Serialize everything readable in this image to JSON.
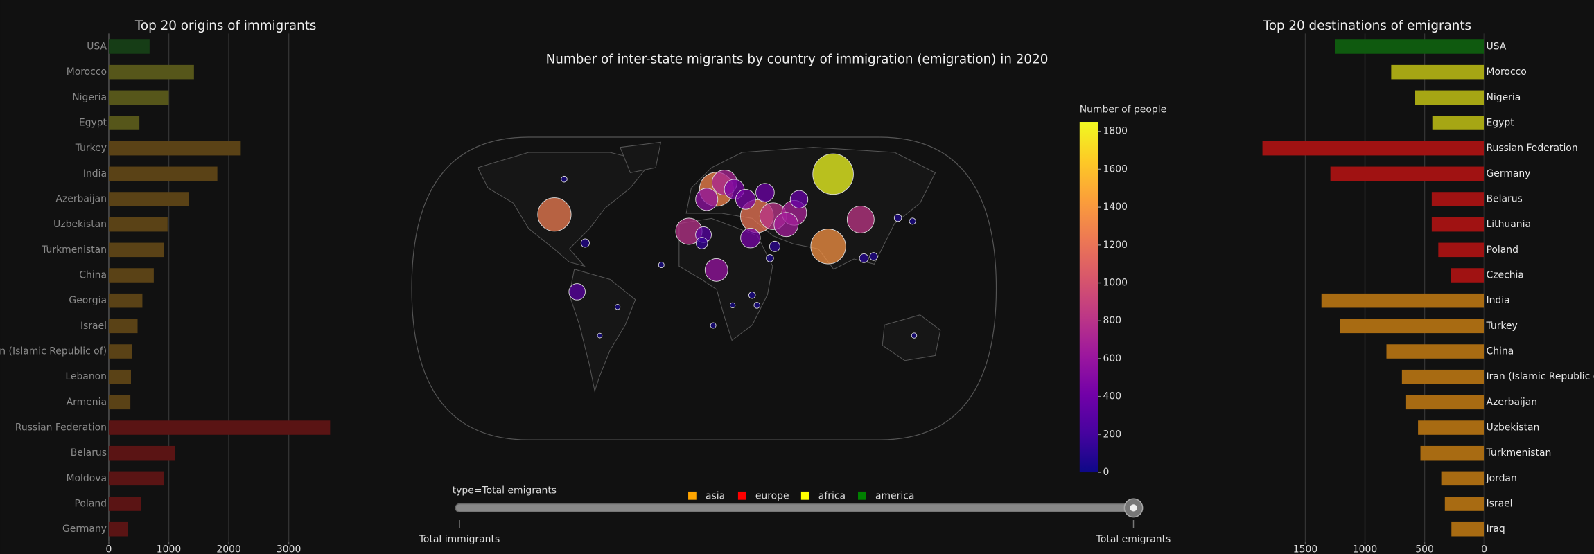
{
  "chart_data": [
    {
      "type": "hbar",
      "title": "Top 20 origins of immigrants",
      "categories": [
        "USA",
        "Morocco",
        "Nigeria",
        "Egypt",
        "Turkey",
        "India",
        "Azerbaijan",
        "Uzbekistan",
        "Turkmenistan",
        "China",
        "Georgia",
        "Israel",
        "Iran (Islamic Republic of)",
        "Lebanon",
        "Armenia",
        "Russian Federation",
        "Belarus",
        "Moldova",
        "Poland",
        "Germany"
      ],
      "values": [
        680,
        1420,
        1000,
        510,
        2200,
        1810,
        1340,
        980,
        920,
        750,
        560,
        480,
        390,
        370,
        360,
        3690,
        1100,
        920,
        540,
        320
      ],
      "colors": [
        "#163d16",
        "#56561a",
        "#56561a",
        "#56561a",
        "#5a4216",
        "#5a4216",
        "#5a4216",
        "#5a4216",
        "#5a4216",
        "#5a4216",
        "#5a4216",
        "#5a4216",
        "#5a4216",
        "#5a4216",
        "#5a4216",
        "#5a1414",
        "#5a1414",
        "#5a1414",
        "#5a1414",
        "#5a1414"
      ],
      "xlim": [
        0,
        3720
      ],
      "xticks": [
        0,
        1000,
        2000,
        3000
      ],
      "grid": true
    },
    {
      "type": "scattergeo",
      "title": "Number of inter-state migrants by country of immigration (emigration) in 2020",
      "points": {
        "lon": [
          80,
          -92,
          77,
          8,
          33,
          97,
          -9,
          8,
          56,
          51,
          43,
          29,
          19,
          26,
          38,
          59,
          0,
          -78,
          13,
          2,
          -86,
          120,
          129,
          105,
          99,
          -53,
          30,
          33,
          6,
          130,
          -64,
          -26,
          18,
          41,
          44,
          -73,
          -1
        ],
        "lat": [
          68,
          44,
          25,
          59,
          43,
          41,
          34,
          11,
          45,
          38,
          43,
          30,
          59,
          53,
          57,
          53,
          32,
          -2,
          63,
          53,
          65,
          42,
          40,
          19,
          18,
          -11,
          -4,
          -10,
          -22,
          -28,
          -28,
          14,
          -10,
          18,
          25,
          27,
          27
        ],
        "values": [
          1850,
          1250,
          1364,
          1290,
          1210,
          818,
          784,
          580,
          690,
          656,
          800,
          435,
          443,
          443,
          384,
          350,
          281,
          300,
          700,
          554,
          40,
          60,
          45,
          70,
          90,
          30,
          50,
          40,
          35,
          30,
          25,
          35,
          30,
          60,
          120,
          80,
          150
        ]
      },
      "colorbar": {
        "title": "Number of people",
        "clim": [
          0,
          1850
        ],
        "ticks": [
          0,
          200,
          400,
          600,
          800,
          1000,
          1200,
          1400,
          1600,
          1800
        ]
      },
      "colorscale": [
        "#0d0887",
        "#46039f",
        "#7201a8",
        "#9c179e",
        "#bd3786",
        "#d8576b",
        "#ed7953",
        "#fb9f3a",
        "#fdca26",
        "#f0f921"
      ]
    },
    {
      "type": "hbar",
      "title": "Top 20 destinations of emigrants",
      "categories": [
        "USA",
        "Morocco",
        "Nigeria",
        "Egypt",
        "Russian Federation",
        "Germany",
        "Belarus",
        "Lithuania",
        "Poland",
        "Czechia",
        "India",
        "Turkey",
        "China",
        "Iran (Islamic Republic of)",
        "Azerbaijan",
        "Uzbekistan",
        "Turkmenistan",
        "Jordan",
        "Israel",
        "Iraq"
      ],
      "values": [
        1250,
        780,
        580,
        435,
        1860,
        1290,
        440,
        440,
        385,
        280,
        1365,
        1210,
        820,
        690,
        655,
        555,
        535,
        360,
        330,
        275
      ],
      "colors": [
        "#0f5a0f",
        "#a6a614",
        "#a6a614",
        "#a6a614",
        "#a01212",
        "#a01212",
        "#a01212",
        "#a01212",
        "#a01212",
        "#a01212",
        "#a86b12",
        "#a86b12",
        "#a86b12",
        "#a86b12",
        "#a86b12",
        "#a86b12",
        "#a86b12",
        "#a86b12",
        "#a86b12",
        "#a86b12"
      ],
      "xlim": [
        1880,
        0
      ],
      "xticks": [
        0,
        500,
        1000,
        1500
      ],
      "grid": true
    }
  ],
  "legend": {
    "items": [
      {
        "name": "asia",
        "color": "#ffa500"
      },
      {
        "name": "europe",
        "color": "#ff0000"
      },
      {
        "name": "africa",
        "color": "#ffff00"
      },
      {
        "name": "america",
        "color": "#008000"
      }
    ]
  },
  "slider": {
    "prefix": "type=",
    "steps": [
      "Total immigrants",
      "Total emigrants"
    ],
    "active": 1
  }
}
